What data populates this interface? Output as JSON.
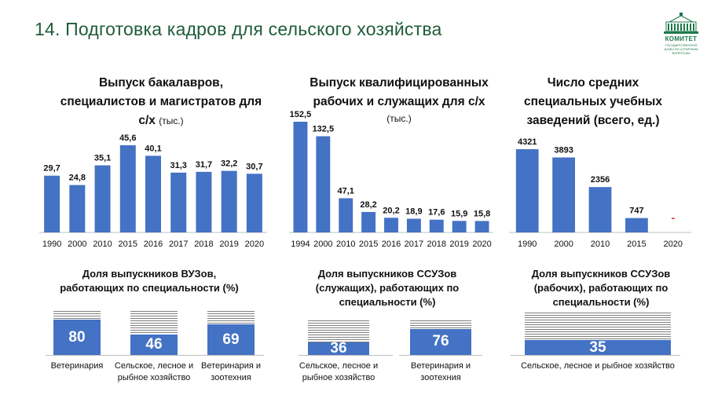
{
  "slide": {
    "title": "14. Подготовка кадров для сельского хозяйства",
    "logo_text": "КОМИТЕТ",
    "logo_sub": "ГОСУДАРСТВЕННОЙ ДУМЫ ПО АГРАРНЫМ ВОПРОСАМ"
  },
  "colors": {
    "bar": "#4472c4",
    "title": "#1f5c3a",
    "dash": "#e3342f"
  },
  "chart_data": [
    {
      "type": "bar",
      "title_line1": "Выпуск бакалавров,",
      "title_line2": "специалистов и магистратов для",
      "title_line3": "с/х",
      "unit": "(тыс.)",
      "categories": [
        "1990",
        "2000",
        "2010",
        "2015",
        "2016",
        "2017",
        "2018",
        "2019",
        "2020"
      ],
      "values": [
        29.7,
        24.8,
        35.1,
        45.6,
        40.1,
        31.3,
        31.7,
        32.2,
        30.7
      ],
      "labels": [
        "29,7",
        "24,8",
        "35,1",
        "45,6",
        "40,1",
        "31,3",
        "31,7",
        "32,2",
        "30,7"
      ]
    },
    {
      "type": "bar",
      "title_line1": "Выпуск квалифицированных",
      "title_line2": "рабочих и служащих для с/х",
      "unit": "(тыс.)",
      "categories": [
        "1994",
        "2000",
        "2010",
        "2015",
        "2016",
        "2017",
        "2018",
        "2019",
        "2020"
      ],
      "values": [
        152.5,
        132.5,
        47.1,
        28.2,
        20.2,
        18.9,
        17.6,
        15.9,
        15.8
      ],
      "labels": [
        "152,5",
        "132,5",
        "47,1",
        "28,2",
        "20,2",
        "18,9",
        "17,6",
        "15,9",
        "15,8"
      ]
    },
    {
      "type": "bar",
      "title_line1": "Число средних",
      "title_line2": "специальных учебных",
      "title_line3": "заведений (всего, ед.)",
      "categories": [
        "1990",
        "2000",
        "2010",
        "2015",
        "2020"
      ],
      "values": [
        4321,
        3893,
        2356,
        747,
        null
      ],
      "labels": [
        "4321",
        "3893",
        "2356",
        "747",
        "-"
      ]
    }
  ],
  "shares": [
    {
      "title_line1": "Доля выпускников ВУЗов,",
      "title_line2": "работающих по специальности (%)",
      "items": [
        {
          "value": 80,
          "label_line1": "Ветеринария",
          "label_line2": ""
        },
        {
          "value": 46,
          "label_line1": "Сельское, лесное и",
          "label_line2": "рыбное хозяйство"
        },
        {
          "value": 69,
          "label_line1": "Ветеринария и",
          "label_line2": "зоотехния"
        }
      ]
    },
    {
      "title_line1": "Доля выпускников ССУЗов",
      "title_line2": "(служащих), работающих по",
      "title_line3": "специальности (%)",
      "items": [
        {
          "value": 36,
          "label_line1": "Сельское, лесное и",
          "label_line2": "рыбное хозяйство"
        },
        {
          "value": 76,
          "label_line1": "Ветеринария и зоотехния",
          "label_line2": ""
        }
      ]
    },
    {
      "title_line1": "Доля выпускников ССУЗов",
      "title_line2": "(рабочих), работающих по",
      "title_line3": "специальности (%)",
      "items": [
        {
          "value": 35,
          "label_line1": "Сельское, лесное и рыбное хозяйство",
          "label_line2": ""
        }
      ]
    }
  ]
}
